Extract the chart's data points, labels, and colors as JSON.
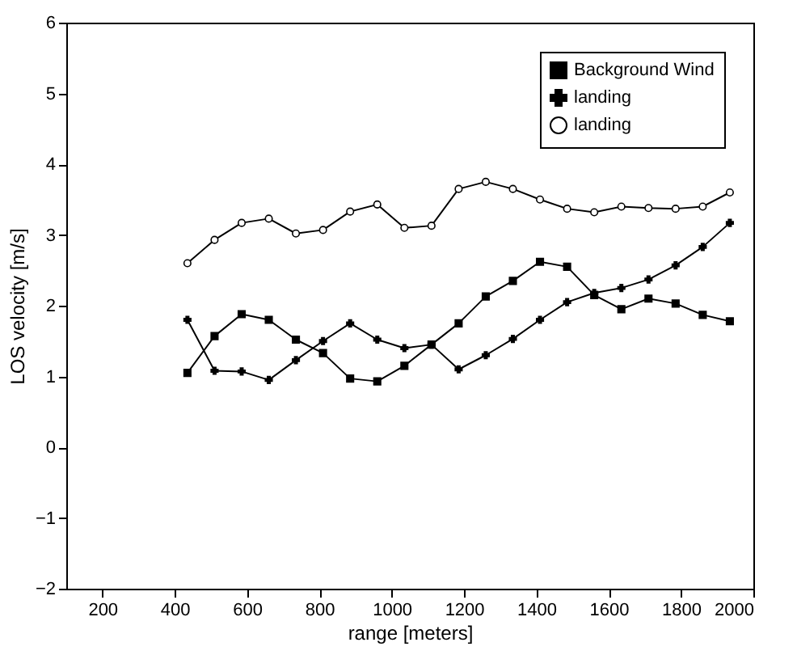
{
  "chart_data": {
    "type": "line",
    "xlabel": "range [meters]",
    "ylabel": "LOS velocity [m/s]",
    "x": [
      435,
      510,
      585,
      660,
      735,
      810,
      885,
      960,
      1035,
      1110,
      1185,
      1260,
      1335,
      1410,
      1485,
      1560,
      1635,
      1710,
      1785,
      1860,
      1935
    ],
    "series": [
      {
        "name": "Background Wind",
        "color": "#000000",
        "marker": "square",
        "values": [
          1.05,
          1.57,
          1.88,
          1.8,
          1.52,
          1.33,
          0.97,
          0.93,
          1.15,
          1.45,
          1.75,
          2.13,
          2.35,
          2.62,
          2.55,
          2.15,
          1.95,
          2.1,
          2.03,
          1.87,
          1.78
        ]
      },
      {
        "name": "landing",
        "color": "#000000",
        "marker": "cross",
        "values": [
          1.8,
          1.08,
          1.07,
          0.95,
          1.23,
          1.5,
          1.75,
          1.52,
          1.4,
          1.45,
          1.1,
          1.3,
          1.53,
          1.8,
          2.05,
          2.18,
          2.25,
          2.37,
          2.57,
          2.83,
          3.17
        ]
      },
      {
        "name": "landing",
        "color": "#000000",
        "marker": "circle",
        "values": [
          2.6,
          2.93,
          3.17,
          3.23,
          3.02,
          3.07,
          3.33,
          3.43,
          3.1,
          3.13,
          3.65,
          3.75,
          3.65,
          3.5,
          3.37,
          3.32,
          3.4,
          3.38,
          3.37,
          3.4,
          3.6
        ]
      }
    ],
    "xlim": [
      100,
      2000
    ],
    "xticks": [
      200,
      400,
      600,
      800,
      1000,
      1200,
      1400,
      1600,
      1800,
      2000
    ],
    "ylim": [
      -2,
      6
    ],
    "yticks": [
      -2,
      -1,
      0,
      1,
      2,
      3,
      4,
      5,
      6
    ],
    "legend": "top right",
    "grid": false,
    "line_style": "solid"
  }
}
